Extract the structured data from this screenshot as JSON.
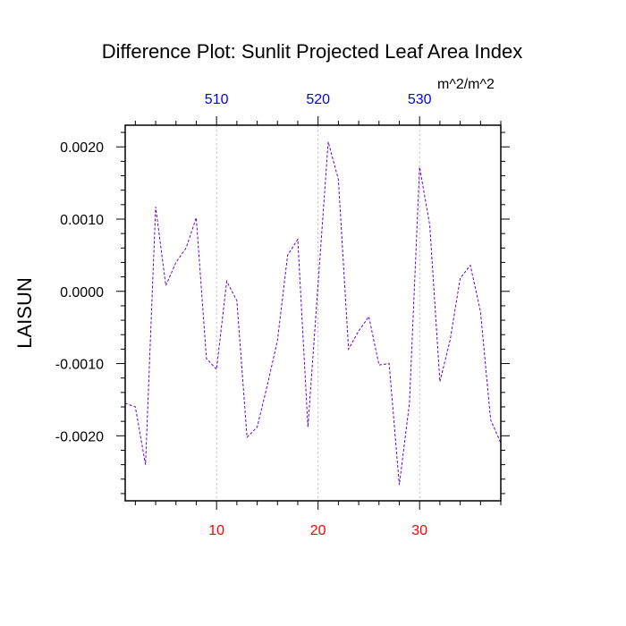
{
  "chart_data": {
    "type": "line",
    "title": "Difference Plot: Sunlit Projected Leaf Area Index",
    "units_label": "m^2/m^2",
    "ylabel": "LAISUN",
    "xlabel": "",
    "xlim": [
      1,
      38
    ],
    "ylim": [
      -0.0029,
      0.0023
    ],
    "grid": "vertical dashed at labeled x ticks",
    "y_ticks": [
      -0.002,
      -0.001,
      0.0,
      0.001,
      0.002
    ],
    "y_tick_labels": [
      "-0.0020",
      "-0.0010",
      "0.0000",
      "0.0010",
      "0.0020"
    ],
    "x_bottom_ticks": [
      10,
      20,
      30
    ],
    "x_bottom_tick_labels": [
      "10",
      "20",
      "30"
    ],
    "x_top_tick_labels": [
      "510",
      "520",
      "530"
    ],
    "colors": {
      "line": "#6a00d0",
      "bottom_axis_labels": "#ff0000",
      "top_axis_labels": "#0000ff",
      "grid": "#aaaaaa"
    },
    "series": [
      {
        "x": [
          1,
          2,
          3,
          4,
          5,
          6,
          7,
          8,
          9,
          10,
          11,
          12,
          13,
          14,
          15,
          16,
          17,
          18,
          19,
          20,
          21,
          22,
          23,
          24,
          25,
          26,
          27,
          28,
          29,
          30,
          31,
          32,
          33,
          34,
          35,
          36,
          37,
          38
        ],
        "values": [
          -0.00155,
          -0.0016,
          -0.0024,
          0.00117,
          8e-05,
          0.0004,
          0.0006,
          0.00102,
          -0.00093,
          -0.00108,
          0.00014,
          -0.00013,
          -0.00202,
          -0.00188,
          -0.0013,
          -0.00068,
          0.0005,
          0.00072,
          -0.00188,
          0.0001,
          0.00207,
          0.00155,
          -0.0008,
          -0.00055,
          -0.00035,
          -0.00102,
          -0.001,
          -0.00268,
          -0.00155,
          0.00172,
          0.00092,
          -0.00125,
          -0.00068,
          0.00018,
          0.00036,
          -0.00028,
          -0.00178,
          -0.0021
        ]
      }
    ]
  }
}
